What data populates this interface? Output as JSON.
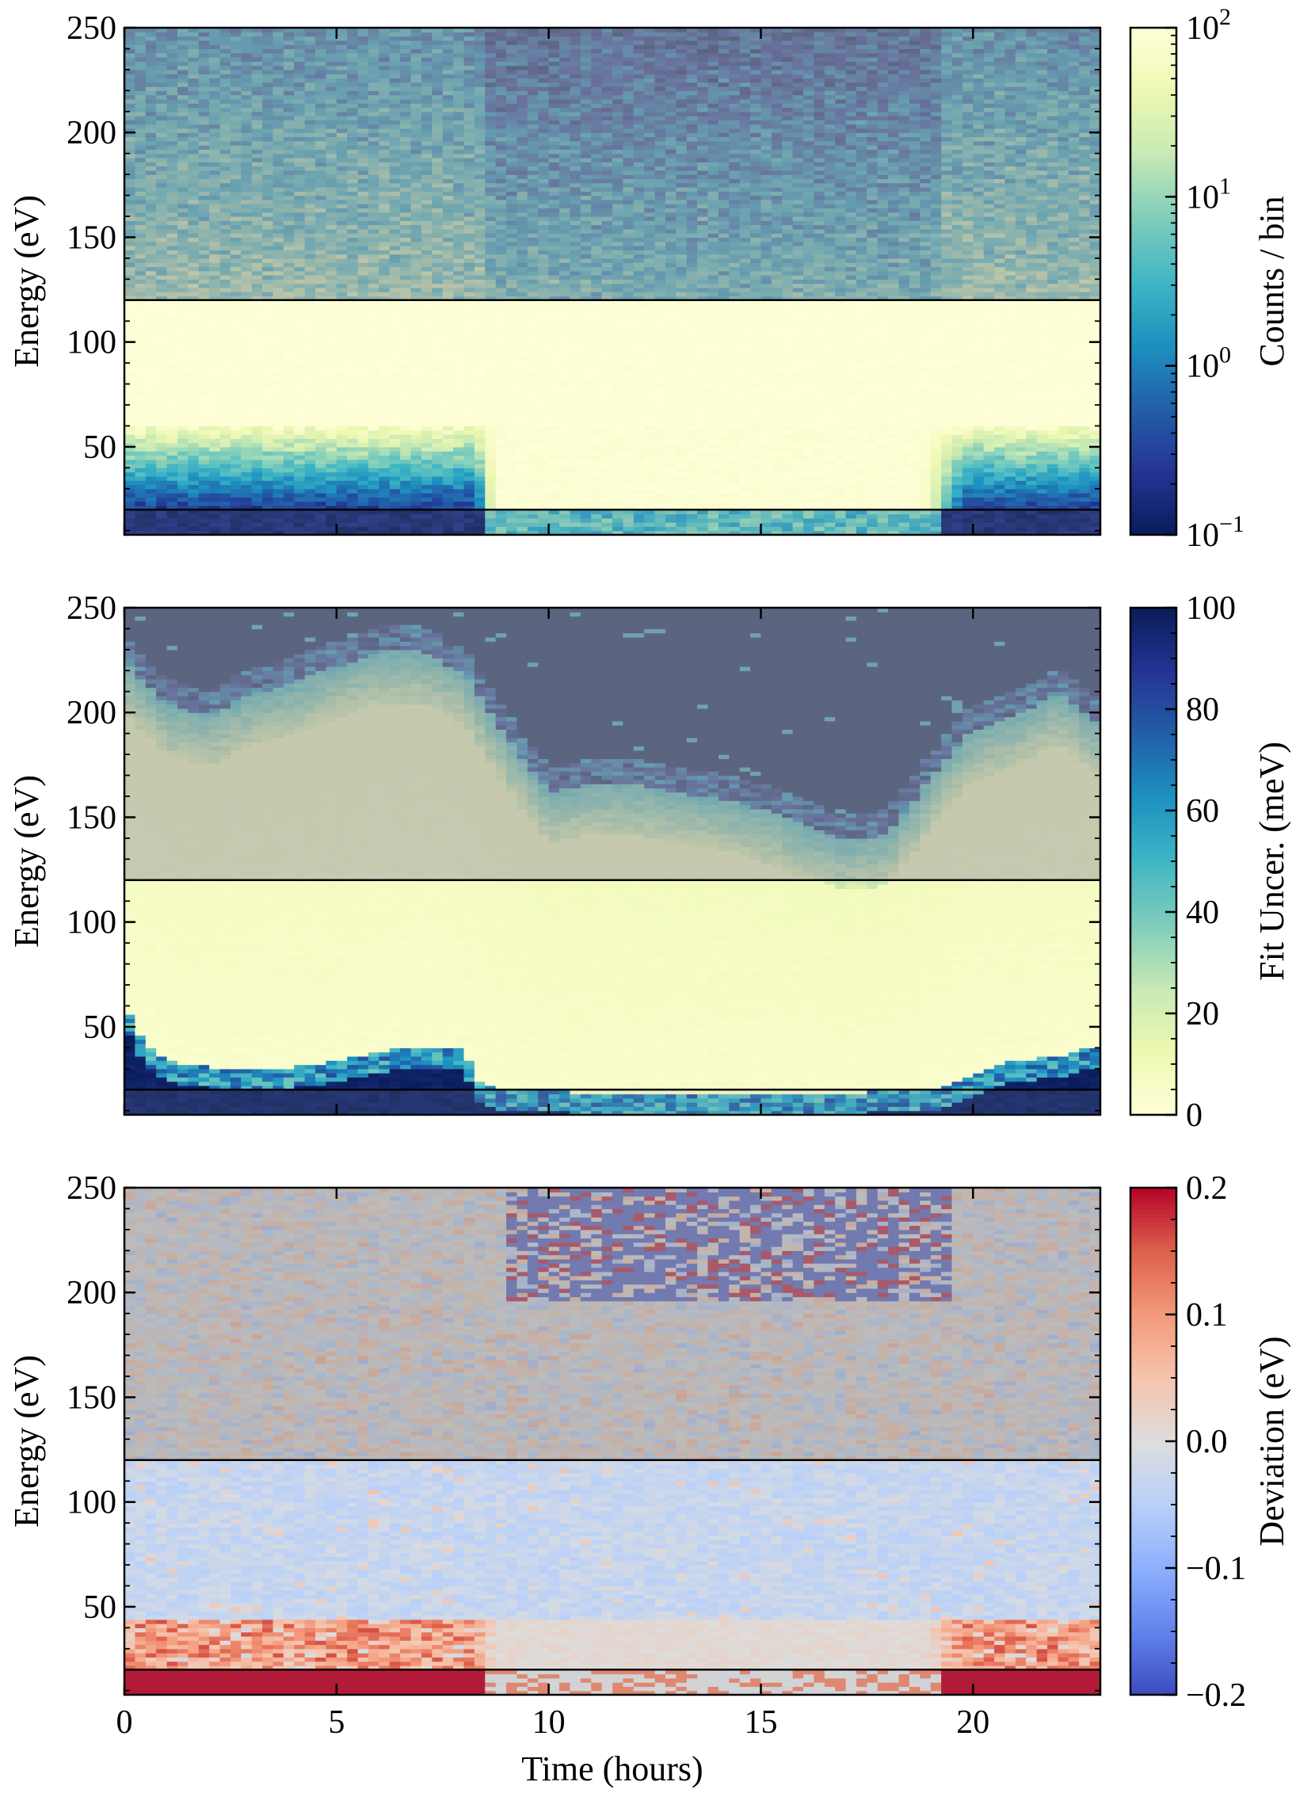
{
  "chart_data": [
    {
      "type": "heatmap",
      "name": "counts",
      "xlabel": "",
      "ylabel": "Energy (eV)",
      "xlim": [
        0,
        23
      ],
      "ylim": [
        8,
        250
      ],
      "yticks": [
        50,
        100,
        150,
        200,
        250
      ],
      "xticks": [
        0,
        5,
        10,
        15,
        20
      ],
      "colorbar": {
        "label": "Counts / bin",
        "scale": "log",
        "range": [
          0.1,
          100
        ],
        "colormap": "YlGnBu_r",
        "ticks": [
          {
            "value": 0.1,
            "base": "10",
            "exp": "−1"
          },
          {
            "value": 1,
            "base": "10",
            "exp": "0"
          },
          {
            "value": 10,
            "base": "10",
            "exp": "1"
          },
          {
            "value": 100,
            "base": "10",
            "exp": "2"
          }
        ]
      },
      "masked_bands": [
        [
          8,
          20
        ],
        [
          120,
          250
        ]
      ],
      "description_of_field": "bright (~100 counts) below 120 eV, falling to ~0.3-3 counts above 150 eV; low-count dip near 20-50 eV during hours 0-8.5 and 19-23"
    },
    {
      "type": "heatmap",
      "name": "fit_uncertainty",
      "xlabel": "",
      "ylabel": "Energy (eV)",
      "xlim": [
        0,
        23
      ],
      "ylim": [
        8,
        250
      ],
      "yticks": [
        50,
        100,
        150,
        200,
        250
      ],
      "xticks": [
        0,
        5,
        10,
        15,
        20
      ],
      "colorbar": {
        "label": "Fit Uncer. (meV)",
        "scale": "linear",
        "range": [
          0,
          100
        ],
        "colormap": "YlGnBu",
        "ticks": [
          {
            "value": 0,
            "text": "0"
          },
          {
            "value": 20,
            "text": "20"
          },
          {
            "value": 40,
            "text": "40"
          },
          {
            "value": 60,
            "text": "60"
          },
          {
            "value": 80,
            "text": "80"
          },
          {
            "value": 100,
            "text": "100"
          }
        ]
      },
      "masked_bands": [
        [
          8,
          20
        ],
        [
          120,
          250
        ]
      ],
      "upper_boundary": {
        "time": [
          0,
          1,
          2,
          3,
          4,
          5,
          6,
          7,
          8,
          9,
          10,
          11,
          12,
          13,
          14,
          15,
          16,
          17,
          18,
          19,
          20,
          21,
          22,
          23
        ],
        "energy": [
          230,
          210,
          205,
          215,
          220,
          228,
          235,
          235,
          225,
          195,
          168,
          172,
          172,
          168,
          165,
          160,
          152,
          145,
          148,
          175,
          198,
          205,
          215,
          200
        ]
      },
      "lower_boundary": {
        "time": [
          0,
          0.5,
          1,
          2,
          3,
          4,
          5,
          6,
          7,
          8,
          8.3,
          9,
          12,
          16,
          19,
          19.5,
          20,
          21,
          22,
          23
        ],
        "energy": [
          55,
          35,
          28,
          25,
          25,
          25,
          28,
          32,
          35,
          35,
          18,
          14,
          12,
          12,
          14,
          18,
          22,
          28,
          30,
          35
        ]
      }
    },
    {
      "type": "heatmap",
      "name": "deviation",
      "xlabel": "Time (hours)",
      "ylabel": "Energy (eV)",
      "xlim": [
        0,
        23
      ],
      "ylim": [
        8,
        250
      ],
      "yticks": [
        50,
        100,
        150,
        200,
        250
      ],
      "xticks": [
        0,
        5,
        10,
        15,
        20
      ],
      "colorbar": {
        "label": "Deviation (eV)",
        "scale": "linear",
        "range": [
          -0.2,
          0.2
        ],
        "colormap": "coolwarm",
        "ticks": [
          {
            "value": -0.2,
            "text": "−0.2"
          },
          {
            "value": -0.1,
            "text": "−0.1"
          },
          {
            "value": 0,
            "text": "0.0"
          },
          {
            "value": 0.1,
            "text": "0.1"
          },
          {
            "value": 0.2,
            "text": "0.2"
          }
        ]
      },
      "masked_bands": [
        [
          8,
          20
        ],
        [
          120,
          250
        ]
      ],
      "description_of_field": "near zero (light) below 120 eV, positive (red) near 20-40 eV during hours 0-8 and 20-23, noisy +/-0.2 above 200 eV after hour 9"
    }
  ]
}
